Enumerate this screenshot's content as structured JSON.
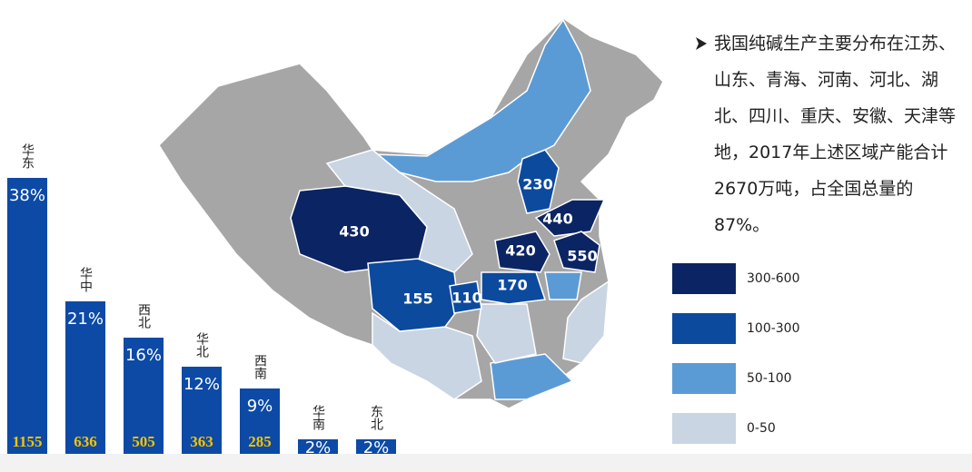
{
  "chart_data": {
    "type": "bar",
    "categories": [
      "华东",
      "华中",
      "西北",
      "华北",
      "西南",
      "华南",
      "东北"
    ],
    "values": [
      38,
      21,
      16,
      12,
      9,
      2,
      2
    ],
    "value_labels": [
      "38%",
      "21%",
      "16%",
      "12%",
      "9%",
      "2%",
      "2%"
    ],
    "capacity": [
      1155,
      636,
      505,
      363,
      285,
      null,
      null
    ],
    "color": "#0c4aa6"
  },
  "map": {
    "regions": [
      {
        "label": 430,
        "color": "#0b2463"
      },
      {
        "label": 230,
        "color": "#0c4a9e"
      },
      {
        "label": 440,
        "color": "#0b2463"
      },
      {
        "label": 420,
        "color": "#0b2463"
      },
      {
        "label": 550,
        "color": "#0b2463"
      },
      {
        "label": 155,
        "color": "#0c4a9e"
      },
      {
        "label": 110,
        "color": "#0c4a9e"
      },
      {
        "label": 170,
        "color": "#0c4a9e"
      }
    ]
  },
  "legend": [
    {
      "label": "300-600",
      "color": "#0b2463"
    },
    {
      "label": "100-300",
      "color": "#0c4a9e"
    },
    {
      "label": "50-100",
      "color": "#5b9bd5"
    },
    {
      "label": "0-50",
      "color": "#c9d5e3"
    }
  ],
  "text": "我国纯碱生产主要分布在江苏、山东、青海、河南、河北、湖北、四川、重庆、安徽、天津等地，2017年上述区域产能合计2670万吨，占全国总量的87%。"
}
